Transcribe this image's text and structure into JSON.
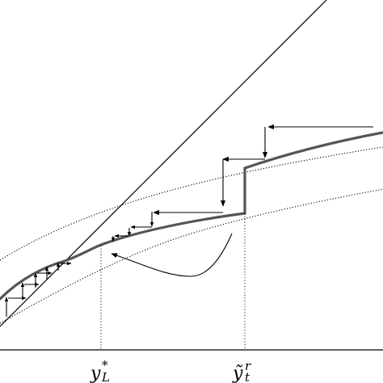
{
  "diagram": {
    "x_axis_labels": [
      {
        "id": "yL-star",
        "base": "y",
        "sup": "*",
        "sub": "L"
      },
      {
        "id": "yt-tilde-r",
        "base": "ỹ",
        "sup": "r",
        "sub": "t"
      }
    ],
    "colors": {
      "policy_curve": "#555555",
      "lines": "#000000",
      "background": "#ffffff"
    },
    "line_styles": {
      "forty_five_degree_line": "solid",
      "upper_curve": "dotted",
      "lower_curve": "dotted",
      "policy_curve": "thick-solid",
      "guide_lines": "dotted",
      "axis": "solid"
    }
  }
}
